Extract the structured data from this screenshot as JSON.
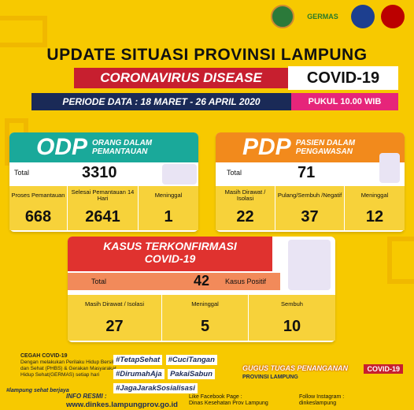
{
  "logos": {
    "germas": "GERMAS"
  },
  "header": {
    "title": "UPDATE SITUASI PROVINSI LAMPUNG",
    "disease": "CORONAVIRUS DISEASE",
    "covid": "COVID-19",
    "periode": "PERIODE DATA : 18 MARET - 26 APRIL 2020",
    "pukul": "PUKUL 10.00 WIB"
  },
  "odp": {
    "code": "ODP",
    "name": "ORANG DALAM PEMANTAUAN",
    "total_label": "Total",
    "total": "3310",
    "cells": [
      {
        "label": "Proses Pemantauan",
        "value": "668"
      },
      {
        "label": "Selesai Pemantauan 14 Hari",
        "value": "2641"
      },
      {
        "label": "Meninggal",
        "value": "1"
      }
    ],
    "color": "#1aa99a"
  },
  "pdp": {
    "code": "PDP",
    "name": "PASIEN DALAM PENGAWASAN",
    "total_label": "Total",
    "total": "71",
    "cells": [
      {
        "label": "Masih Dirawat / Isolasi",
        "value": "22"
      },
      {
        "label": "Pulang/Sembuh /Negatif",
        "value": "37"
      },
      {
        "label": "Meninggal",
        "value": "12"
      }
    ],
    "color": "#f28a1c"
  },
  "kasus": {
    "title1": "KASUS TERKONFIRMASI",
    "title2": "COVID-19",
    "total_label": "Total",
    "total": "42",
    "positif_label": "Kasus Positif",
    "cells": [
      {
        "label": "Masih Dirawat / Isolasi",
        "value": "27"
      },
      {
        "label": "Meninggal",
        "value": "5"
      },
      {
        "label": "Sembuh",
        "value": "10"
      }
    ],
    "color": "#e0322f"
  },
  "footer": {
    "cegah_title": "CEGAH COVID-19",
    "cegah_text": "Dengan melakukan Perilaku Hidup Bersih dan Sehat (PHBS) & Gerakan Masyarakat Hidup Sehat(GERMAS) setiap hari",
    "hashtags": [
      "#TetapSehat",
      "#CuciTangan",
      "#DirumahAja",
      "PakaiSabun",
      "#JagaJarakSosialisasi"
    ],
    "gugus": "GUGUS TUGAS PENANGANAN",
    "gugus_tag": "COVID-19",
    "provinsi": "PROVINSI LAMPUNG",
    "info_title": "INFO RESMI :",
    "info_url": "www.dinkes.lampungprov.go.id",
    "fb_title": "Like Facebook Page :",
    "fb": "Dinas Kesehatan Prov Lampung",
    "ig_title": "Follow Instagram :",
    "ig": "dinkeslampung",
    "brand": "#lampung sehat berjaya"
  }
}
